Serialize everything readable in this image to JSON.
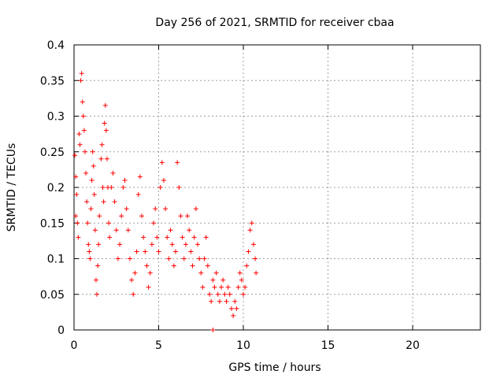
{
  "chart_data": {
    "type": "scatter",
    "title": "Day 256 of 2021, SRMTID for receiver cbaa",
    "xlabel": "GPS time / hours",
    "ylabel": "SRMTID / TECUs",
    "xlim": [
      0,
      24
    ],
    "ylim": [
      0,
      0.4
    ],
    "xticks": [
      0,
      5,
      10,
      15,
      20
    ],
    "yticks": [
      0,
      0.05,
      0.1,
      0.15,
      0.2,
      0.25,
      0.3,
      0.35,
      0.4
    ],
    "ytick_labels": [
      "0",
      "0.05",
      "0.1",
      "0.15",
      "0.2",
      "0.25",
      "0.3",
      "0.35",
      "0.4"
    ],
    "grid": true,
    "marker": "plus",
    "series": [
      {
        "name": "SRMTID",
        "color": "#ff0000",
        "points": [
          [
            0.05,
            0.245
          ],
          [
            0.1,
            0.215
          ],
          [
            0.1,
            0.16
          ],
          [
            0.15,
            0.19
          ],
          [
            0.2,
            0.15
          ],
          [
            0.25,
            0.13
          ],
          [
            0.3,
            0.275
          ],
          [
            0.35,
            0.26
          ],
          [
            0.4,
            0.35
          ],
          [
            0.45,
            0.36
          ],
          [
            0.5,
            0.32
          ],
          [
            0.55,
            0.3
          ],
          [
            0.6,
            0.28
          ],
          [
            0.65,
            0.25
          ],
          [
            0.7,
            0.22
          ],
          [
            0.75,
            0.18
          ],
          [
            0.8,
            0.15
          ],
          [
            0.85,
            0.12
          ],
          [
            0.9,
            0.11
          ],
          [
            0.95,
            0.1
          ],
          [
            1.0,
            0.17
          ],
          [
            1.05,
            0.21
          ],
          [
            1.1,
            0.25
          ],
          [
            1.15,
            0.23
          ],
          [
            1.2,
            0.19
          ],
          [
            1.25,
            0.14
          ],
          [
            1.3,
            0.07
          ],
          [
            1.35,
            0.05
          ],
          [
            1.4,
            0.09
          ],
          [
            1.45,
            0.12
          ],
          [
            1.5,
            0.16
          ],
          [
            1.6,
            0.24
          ],
          [
            1.65,
            0.26
          ],
          [
            1.7,
            0.2
          ],
          [
            1.75,
            0.18
          ],
          [
            1.8,
            0.29
          ],
          [
            1.85,
            0.315
          ],
          [
            1.9,
            0.28
          ],
          [
            1.95,
            0.24
          ],
          [
            2.0,
            0.2
          ],
          [
            2.05,
            0.15
          ],
          [
            2.1,
            0.13
          ],
          [
            2.2,
            0.2
          ],
          [
            2.3,
            0.22
          ],
          [
            2.4,
            0.18
          ],
          [
            2.5,
            0.14
          ],
          [
            2.6,
            0.1
          ],
          [
            2.7,
            0.12
          ],
          [
            2.8,
            0.16
          ],
          [
            2.9,
            0.2
          ],
          [
            3.0,
            0.21
          ],
          [
            3.1,
            0.17
          ],
          [
            3.2,
            0.14
          ],
          [
            3.3,
            0.1
          ],
          [
            3.4,
            0.07
          ],
          [
            3.5,
            0.05
          ],
          [
            3.6,
            0.08
          ],
          [
            3.7,
            0.11
          ],
          [
            3.8,
            0.19
          ],
          [
            3.9,
            0.215
          ],
          [
            4.0,
            0.16
          ],
          [
            4.1,
            0.13
          ],
          [
            4.2,
            0.11
          ],
          [
            4.3,
            0.09
          ],
          [
            4.4,
            0.06
          ],
          [
            4.5,
            0.08
          ],
          [
            4.6,
            0.12
          ],
          [
            4.7,
            0.15
          ],
          [
            4.8,
            0.17
          ],
          [
            4.9,
            0.13
          ],
          [
            5.0,
            0.11
          ],
          [
            5.1,
            0.2
          ],
          [
            5.2,
            0.235
          ],
          [
            5.3,
            0.21
          ],
          [
            5.4,
            0.17
          ],
          [
            5.5,
            0.13
          ],
          [
            5.6,
            0.1
          ],
          [
            5.7,
            0.14
          ],
          [
            5.8,
            0.12
          ],
          [
            5.9,
            0.09
          ],
          [
            6.0,
            0.11
          ],
          [
            6.1,
            0.235
          ],
          [
            6.2,
            0.2
          ],
          [
            6.3,
            0.16
          ],
          [
            6.4,
            0.13
          ],
          [
            6.5,
            0.1
          ],
          [
            6.6,
            0.12
          ],
          [
            6.7,
            0.16
          ],
          [
            6.8,
            0.14
          ],
          [
            6.9,
            0.11
          ],
          [
            7.0,
            0.09
          ],
          [
            7.1,
            0.13
          ],
          [
            7.2,
            0.17
          ],
          [
            7.3,
            0.12
          ],
          [
            7.4,
            0.1
          ],
          [
            7.5,
            0.08
          ],
          [
            7.6,
            0.06
          ],
          [
            7.7,
            0.1
          ],
          [
            7.8,
            0.13
          ],
          [
            7.9,
            0.09
          ],
          [
            8.0,
            0.05
          ],
          [
            8.1,
            0.04
          ],
          [
            8.2,
            0.07
          ],
          [
            8.3,
            0.06
          ],
          [
            8.4,
            0.08
          ],
          [
            8.5,
            0.05
          ],
          [
            8.6,
            0.04
          ],
          [
            8.7,
            0.06
          ],
          [
            8.8,
            0.07
          ],
          [
            8.9,
            0.05
          ],
          [
            9.0,
            0.04
          ],
          [
            9.1,
            0.06
          ],
          [
            9.2,
            0.05
          ],
          [
            9.3,
            0.03
          ],
          [
            9.4,
            0.02
          ],
          [
            9.5,
            0.04
          ],
          [
            9.6,
            0.03
          ],
          [
            9.7,
            0.06
          ],
          [
            9.8,
            0.08
          ],
          [
            9.9,
            0.07
          ],
          [
            10.0,
            0.05
          ],
          [
            10.1,
            0.06
          ],
          [
            10.2,
            0.09
          ],
          [
            10.3,
            0.11
          ],
          [
            10.4,
            0.14
          ],
          [
            10.5,
            0.15
          ],
          [
            10.6,
            0.12
          ],
          [
            10.7,
            0.1
          ],
          [
            10.75,
            0.08
          ],
          [
            8.2,
            0.0
          ]
        ]
      }
    ]
  }
}
